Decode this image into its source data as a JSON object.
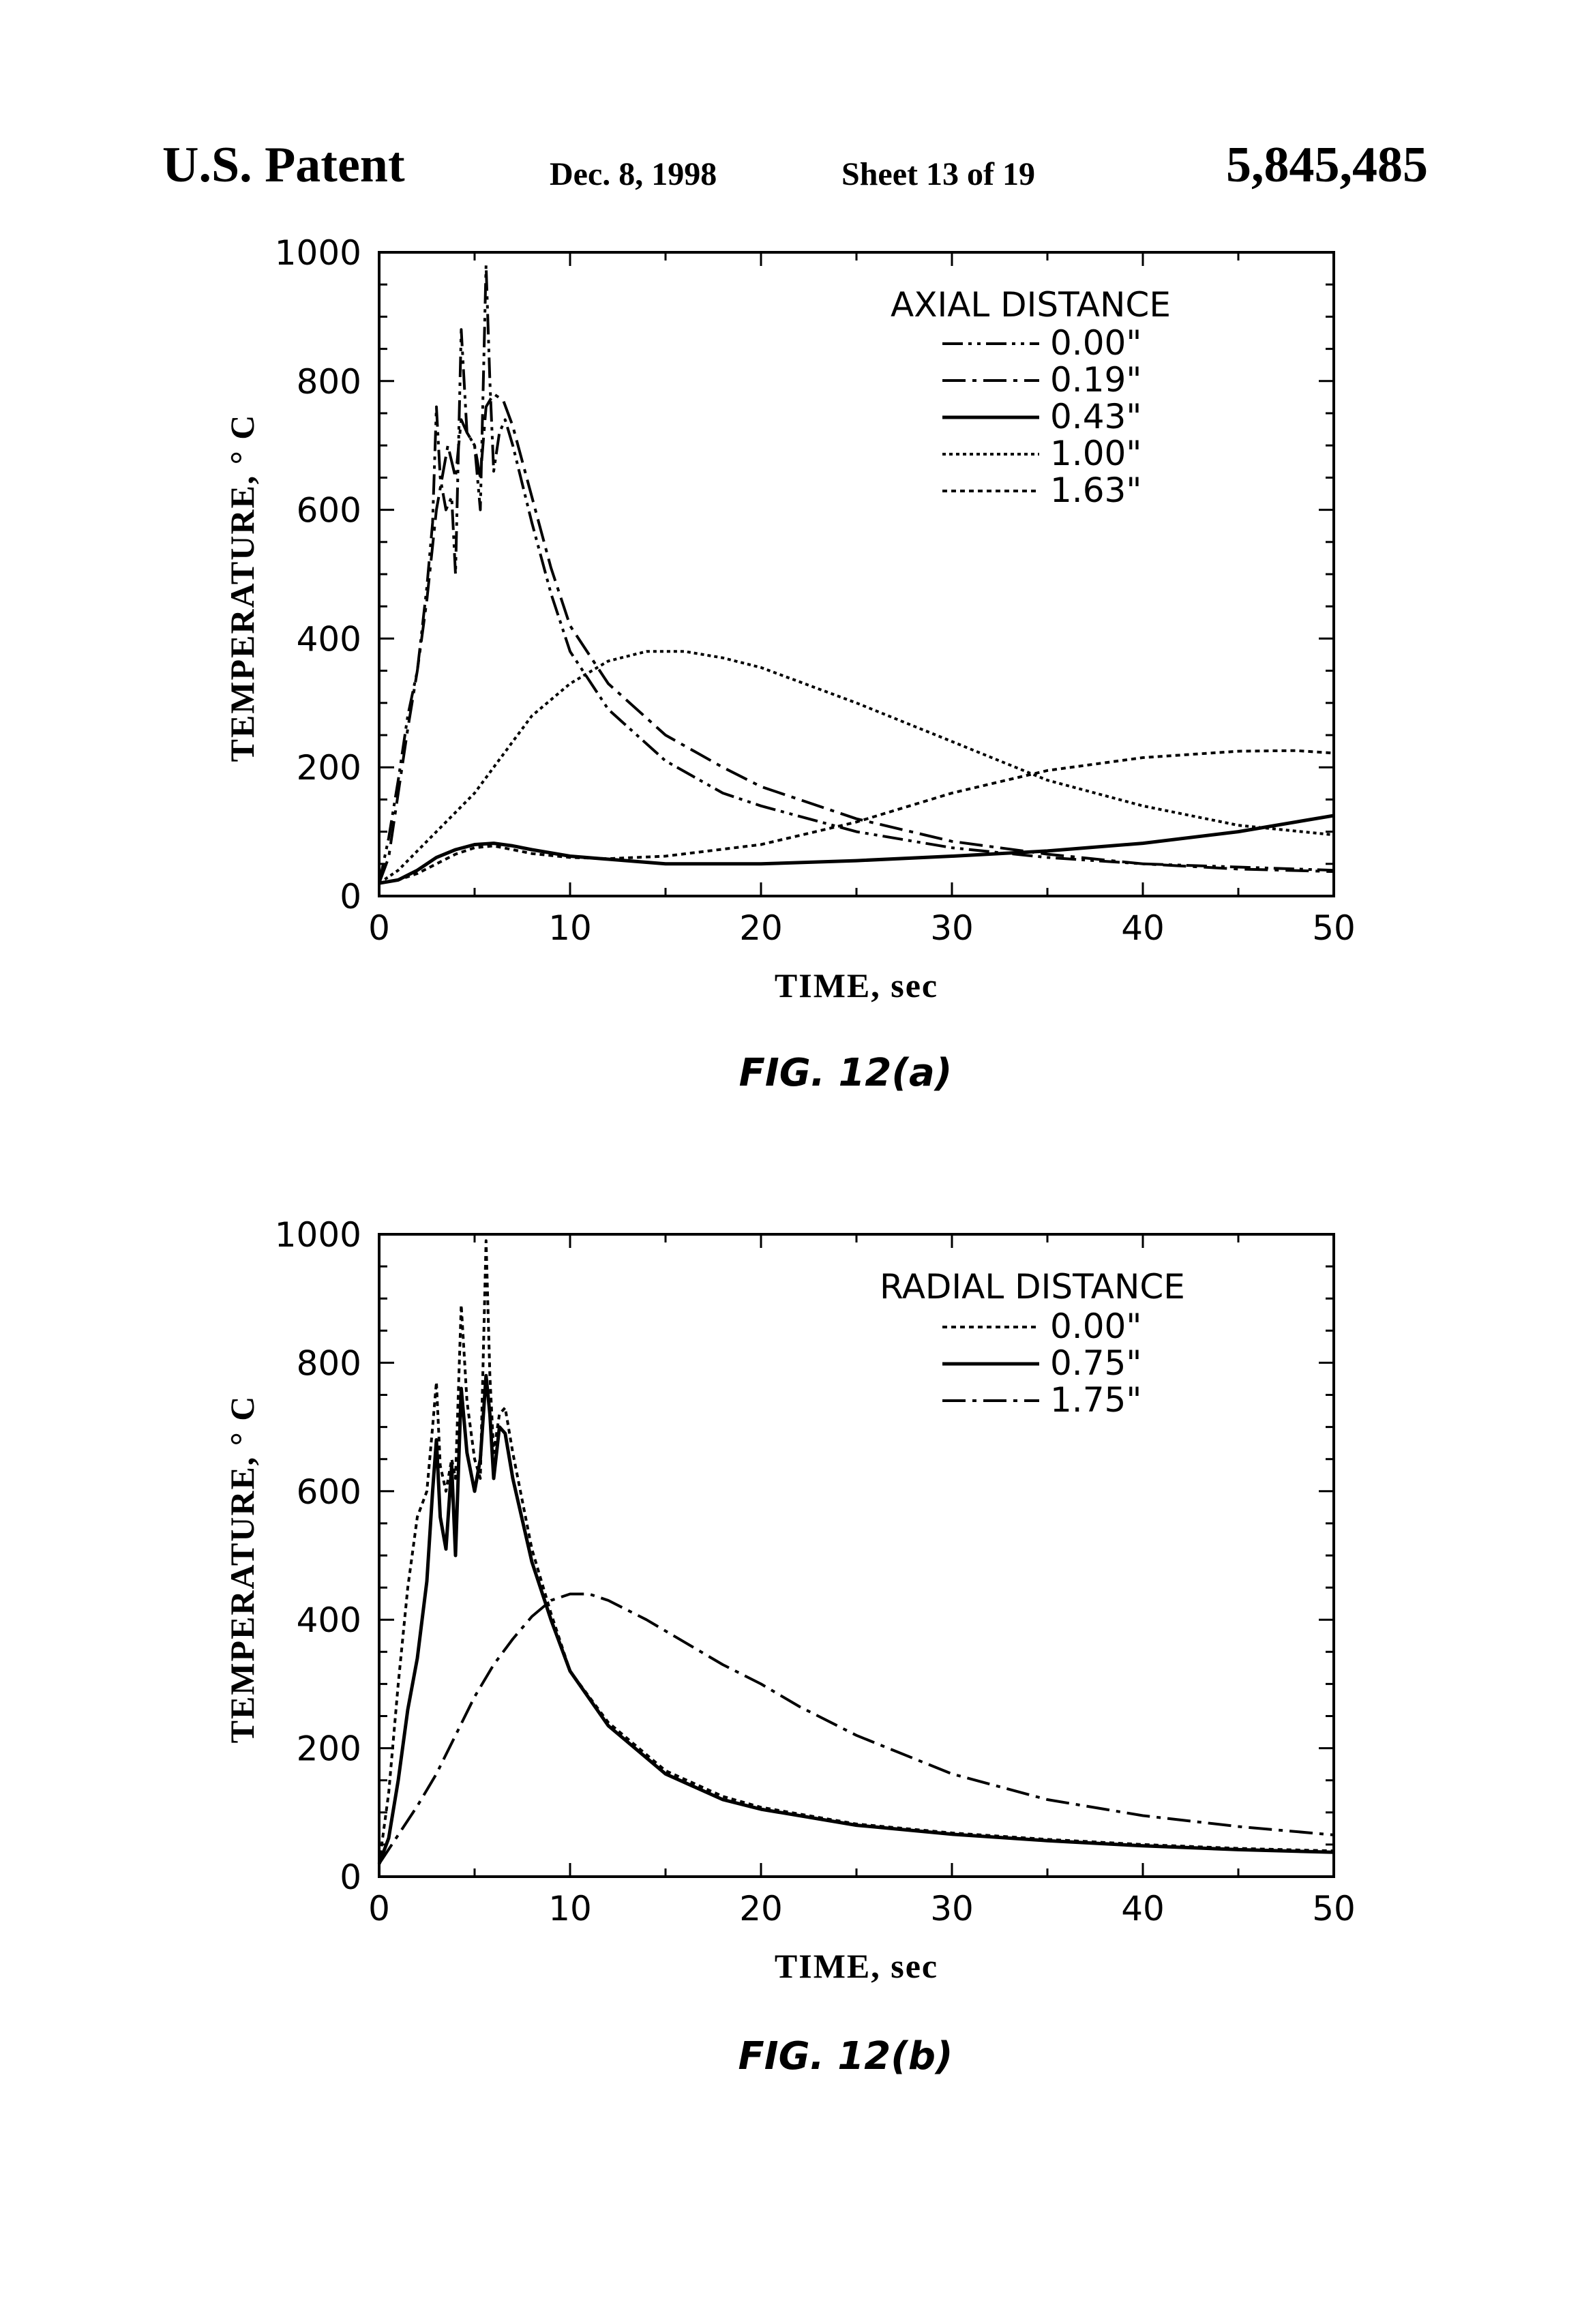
{
  "header": {
    "left": "U.S. Patent",
    "date": "Dec. 8, 1998",
    "sheet": "Sheet 13 of 19",
    "patent_number": "5,845,485"
  },
  "chart_data": [
    {
      "type": "line",
      "figure_label": "FIG. 12(a)",
      "xlabel": "TIME, sec",
      "ylabel": "TEMPERATURE, ° C",
      "xlim": [
        0,
        50
      ],
      "ylim": [
        0,
        1000
      ],
      "xticks": [
        0,
        10,
        20,
        30,
        40,
        50
      ],
      "yticks": [
        0,
        200,
        400,
        600,
        800,
        1000
      ],
      "grid": false,
      "legend_title": "AXIAL DISTANCE",
      "legend_position": "top-right",
      "series": [
        {
          "name": "0.00\"",
          "dash": "dashdotdot",
          "x": [
            0,
            0.5,
            1,
            1.5,
            2,
            2.5,
            2.8,
            3,
            3.2,
            3.5,
            3.8,
            4,
            4.3,
            4.6,
            5,
            5.3,
            5.6,
            5.8,
            6,
            6.3,
            6.6,
            7,
            8,
            9,
            10,
            12,
            15,
            18,
            20,
            25,
            30,
            35,
            40,
            45,
            50
          ],
          "y": [
            20,
            90,
            180,
            280,
            350,
            480,
            580,
            760,
            650,
            600,
            620,
            500,
            880,
            720,
            700,
            600,
            980,
            800,
            660,
            720,
            740,
            700,
            580,
            470,
            380,
            290,
            210,
            160,
            140,
            100,
            75,
            60,
            50,
            45,
            40
          ]
        },
        {
          "name": "0.19\"",
          "dash": "dashdot",
          "x": [
            0,
            0.5,
            1,
            1.5,
            2,
            2.5,
            3,
            3.3,
            3.6,
            4,
            4.3,
            4.6,
            5,
            5.3,
            5.6,
            6,
            6.5,
            7,
            8,
            9,
            10,
            12,
            15,
            18,
            20,
            25,
            30,
            35,
            40,
            45,
            50
          ],
          "y": [
            20,
            60,
            160,
            260,
            350,
            460,
            600,
            650,
            700,
            650,
            740,
            720,
            700,
            650,
            760,
            780,
            770,
            730,
            620,
            510,
            420,
            330,
            250,
            200,
            170,
            120,
            85,
            65,
            50,
            42,
            38
          ]
        },
        {
          "name": "0.43\"",
          "dash": "solid",
          "x": [
            0,
            1,
            2,
            3,
            4,
            5,
            6,
            7,
            8,
            10,
            15,
            20,
            25,
            30,
            35,
            40,
            45,
            50
          ],
          "y": [
            20,
            25,
            40,
            60,
            72,
            80,
            82,
            78,
            72,
            62,
            50,
            50,
            55,
            62,
            70,
            82,
            100,
            125
          ]
        },
        {
          "name": "1.00\"",
          "dash": "dotted-fine",
          "x": [
            0,
            1,
            2,
            3,
            4,
            5,
            6,
            7,
            8,
            10,
            12,
            14,
            16,
            18,
            20,
            25,
            30,
            35,
            40,
            45,
            50
          ],
          "y": [
            20,
            40,
            70,
            100,
            130,
            160,
            200,
            240,
            280,
            330,
            365,
            380,
            380,
            370,
            355,
            300,
            240,
            180,
            140,
            110,
            95
          ]
        },
        {
          "name": "1.63\"",
          "dash": "dotted",
          "x": [
            0,
            1,
            2,
            3,
            4,
            5,
            6,
            7,
            8,
            10,
            12,
            15,
            20,
            25,
            30,
            35,
            40,
            45,
            48,
            50
          ],
          "y": [
            20,
            25,
            35,
            50,
            65,
            75,
            78,
            72,
            66,
            60,
            58,
            62,
            80,
            115,
            160,
            195,
            215,
            225,
            226,
            222
          ]
        }
      ]
    },
    {
      "type": "line",
      "figure_label": "FIG. 12(b)",
      "xlabel": "TIME, sec",
      "ylabel": "TEMPERATURE, ° C",
      "xlim": [
        0,
        50
      ],
      "ylim": [
        0,
        1000
      ],
      "xticks": [
        0,
        10,
        20,
        30,
        40,
        50
      ],
      "yticks": [
        0,
        200,
        400,
        600,
        800,
        1000
      ],
      "grid": false,
      "legend_title": "RADIAL DISTANCE",
      "legend_position": "top-right",
      "series": [
        {
          "name": "0.00\"",
          "dash": "dotted",
          "x": [
            0,
            0.5,
            1,
            1.5,
            2,
            2.5,
            2.8,
            3,
            3.2,
            3.5,
            3.8,
            4,
            4.3,
            4.6,
            5,
            5.3,
            5.6,
            5.8,
            6,
            6.3,
            6.6,
            7,
            8,
            9,
            10,
            12,
            15,
            18,
            20,
            25,
            30,
            35,
            40,
            45,
            50
          ],
          "y": [
            20,
            130,
            300,
            450,
            560,
            600,
            700,
            770,
            640,
            600,
            650,
            620,
            890,
            740,
            650,
            620,
            990,
            780,
            660,
            720,
            730,
            660,
            510,
            410,
            320,
            240,
            165,
            125,
            108,
            82,
            68,
            58,
            50,
            44,
            40
          ]
        },
        {
          "name": "0.75\"",
          "dash": "solid",
          "x": [
            0,
            0.5,
            1,
            1.5,
            2,
            2.5,
            2.8,
            3,
            3.2,
            3.5,
            3.8,
            4,
            4.3,
            4.6,
            5,
            5.3,
            5.6,
            5.8,
            6,
            6.3,
            6.6,
            7,
            8,
            9,
            10,
            12,
            15,
            18,
            20,
            25,
            30,
            35,
            40,
            45,
            50
          ],
          "y": [
            20,
            60,
            150,
            260,
            340,
            460,
            600,
            680,
            560,
            510,
            640,
            500,
            760,
            660,
            600,
            650,
            780,
            720,
            620,
            700,
            690,
            620,
            490,
            400,
            320,
            235,
            160,
            120,
            105,
            80,
            66,
            56,
            48,
            42,
            38
          ]
        },
        {
          "name": "1.75\"",
          "dash": "dashdot",
          "x": [
            0,
            1,
            2,
            3,
            4,
            5,
            6,
            7,
            8,
            9,
            10,
            11,
            12,
            14,
            16,
            18,
            20,
            22,
            25,
            30,
            35,
            40,
            45,
            50
          ],
          "y": [
            20,
            65,
            110,
            160,
            220,
            280,
            330,
            370,
            405,
            430,
            440,
            440,
            430,
            400,
            365,
            330,
            300,
            265,
            220,
            160,
            120,
            95,
            78,
            65
          ]
        }
      ]
    }
  ]
}
